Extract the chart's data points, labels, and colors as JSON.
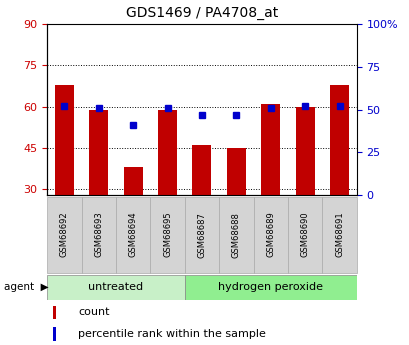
{
  "title": "GDS1469 / PA4708_at",
  "categories": [
    "GSM68692",
    "GSM68693",
    "GSM68694",
    "GSM68695",
    "GSM68687",
    "GSM68688",
    "GSM68689",
    "GSM68690",
    "GSM68691"
  ],
  "bar_values": [
    68,
    59,
    38,
    59,
    46,
    45,
    61,
    60,
    68
  ],
  "dot_values_pct": [
    52,
    51,
    41,
    51,
    47,
    47,
    51,
    52,
    52
  ],
  "bar_color": "#c00000",
  "dot_color": "#0000cc",
  "ylim_left": [
    28,
    90
  ],
  "ylim_right": [
    0,
    100
  ],
  "yticks_left": [
    30,
    45,
    60,
    75,
    90
  ],
  "yticks_right": [
    0,
    25,
    50,
    75,
    100
  ],
  "ytick_labels_right": [
    "0",
    "25",
    "50",
    "75",
    "100%"
  ],
  "group1_label": "untreated",
  "group2_label": "hydrogen peroxide",
  "group1_color": "#c8f0c8",
  "group2_color": "#90ee90",
  "agent_label": "agent",
  "legend_count": "count",
  "legend_pct": "percentile rank within the sample",
  "n_group1": 4,
  "n_group2": 5,
  "bar_width": 0.55,
  "background_plot": "#ffffff",
  "tick_label_color_left": "#cc0000",
  "tick_label_color_right": "#0000cc",
  "gray_box_color": "#d4d4d4",
  "gray_box_edge": "#aaaaaa"
}
